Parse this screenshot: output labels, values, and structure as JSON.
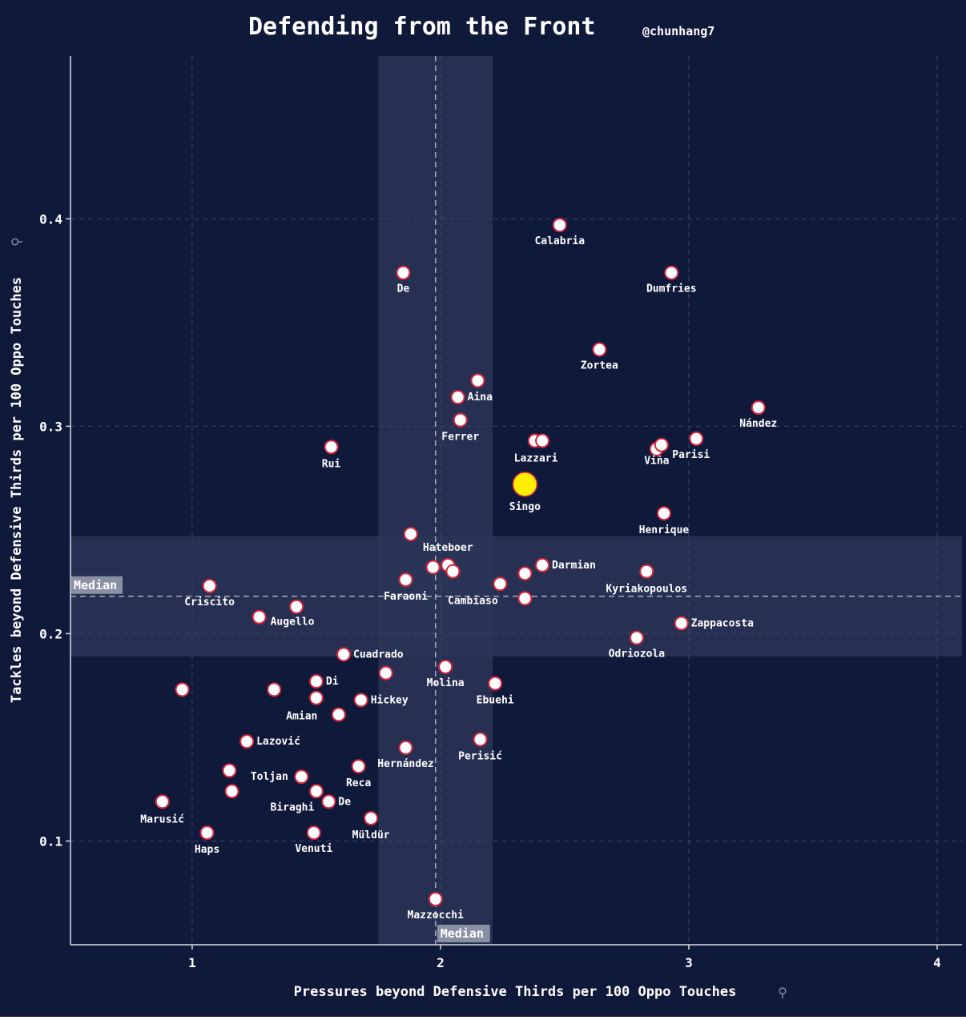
{
  "colors": {
    "background": "#0f1a3b",
    "axis": "#d8dbe6",
    "grid": "#3b4668",
    "median_band": "#2b3557",
    "median_line": "#a7adbf",
    "point_fill": "#ffffff",
    "point_stroke": "#d7263d",
    "highlight_fill": "#ffee00",
    "highlight_stroke": "#d7263d",
    "text": "#ffffff",
    "median_label_bg": "#8a90a3"
  },
  "chart_data": {
    "type": "scatter",
    "title": "Defending from the Front",
    "subtitle": "@chunhang7",
    "xlabel": "Pressures beyond Defensive Thirds per 100 Oppo Touches",
    "ylabel": "Tackles beyond Defensive Thirds per 100 Oppo Touches",
    "xlabel_icon": "pin-icon",
    "ylabel_icon": "pin-icon",
    "xlim": [
      0.51,
      4.1
    ],
    "ylim": [
      0.05,
      0.4785
    ],
    "xticks": [
      1,
      2,
      3,
      4
    ],
    "yticks": [
      0.1,
      0.2,
      0.3,
      0.4
    ],
    "xtick_labels": [
      "1",
      "2",
      "3",
      "4"
    ],
    "ytick_labels": [
      "0.1",
      "0.2",
      "0.3",
      "0.4"
    ],
    "grid": true,
    "x_median": 1.98,
    "y_median": 0.218,
    "x_band": [
      1.75,
      2.21
    ],
    "y_band": [
      0.189,
      0.247
    ],
    "median_label": "Median",
    "highlight": "Singo",
    "points": [
      {
        "x": 2.48,
        "y": 0.397,
        "label": "Calabria"
      },
      {
        "x": 1.85,
        "y": 0.374,
        "label": "De"
      },
      {
        "x": 2.93,
        "y": 0.374,
        "label": "Dumfries"
      },
      {
        "x": 2.64,
        "y": 0.337,
        "label": "Zortea"
      },
      {
        "x": 2.15,
        "y": 0.322,
        "label": ""
      },
      {
        "x": 2.07,
        "y": 0.314,
        "label": "Aina"
      },
      {
        "x": 3.28,
        "y": 0.309,
        "label": "Nández"
      },
      {
        "x": 2.08,
        "y": 0.303,
        "label": "Ferrer"
      },
      {
        "x": 2.38,
        "y": 0.293,
        "label": ""
      },
      {
        "x": 2.41,
        "y": 0.293,
        "label": "Lazzari"
      },
      {
        "x": 3.03,
        "y": 0.294,
        "label": "Parisi"
      },
      {
        "x": 2.87,
        "y": 0.289,
        "label": ""
      },
      {
        "x": 2.89,
        "y": 0.291,
        "label": "Viña"
      },
      {
        "x": 1.56,
        "y": 0.29,
        "label": "Rui"
      },
      {
        "x": 2.34,
        "y": 0.272,
        "label": "Singo"
      },
      {
        "x": 2.9,
        "y": 0.258,
        "label": "Henrique"
      },
      {
        "x": 1.88,
        "y": 0.248,
        "label": ""
      },
      {
        "x": 1.97,
        "y": 0.232,
        "label": ""
      },
      {
        "x": 2.03,
        "y": 0.233,
        "label": "Hateboer"
      },
      {
        "x": 2.05,
        "y": 0.23,
        "label": ""
      },
      {
        "x": 2.41,
        "y": 0.233,
        "label": "Darmian"
      },
      {
        "x": 2.34,
        "y": 0.229,
        "label": ""
      },
      {
        "x": 2.83,
        "y": 0.23,
        "label": "Kyriakopoulos"
      },
      {
        "x": 1.86,
        "y": 0.226,
        "label": "Faraoni"
      },
      {
        "x": 2.24,
        "y": 0.224,
        "label": "Cambiaso"
      },
      {
        "x": 2.34,
        "y": 0.217,
        "label": ""
      },
      {
        "x": 1.07,
        "y": 0.223,
        "label": "Criscito"
      },
      {
        "x": 1.42,
        "y": 0.213,
        "label": ""
      },
      {
        "x": 1.27,
        "y": 0.208,
        "label": "Augello"
      },
      {
        "x": 2.97,
        "y": 0.205,
        "label": "Zappacosta"
      },
      {
        "x": 2.79,
        "y": 0.198,
        "label": "Odriozola"
      },
      {
        "x": 1.61,
        "y": 0.19,
        "label": "Cuadrado"
      },
      {
        "x": 2.02,
        "y": 0.184,
        "label": "Molina"
      },
      {
        "x": 1.78,
        "y": 0.181,
        "label": ""
      },
      {
        "x": 1.5,
        "y": 0.177,
        "label": "Di"
      },
      {
        "x": 2.22,
        "y": 0.176,
        "label": "Ebuehi"
      },
      {
        "x": 0.96,
        "y": 0.173,
        "label": ""
      },
      {
        "x": 1.33,
        "y": 0.173,
        "label": ""
      },
      {
        "x": 1.5,
        "y": 0.169,
        "label": ""
      },
      {
        "x": 1.68,
        "y": 0.168,
        "label": "Hickey"
      },
      {
        "x": 1.59,
        "y": 0.161,
        "label": "Amian"
      },
      {
        "x": 1.22,
        "y": 0.148,
        "label": "Lazović"
      },
      {
        "x": 2.16,
        "y": 0.149,
        "label": "Perisić"
      },
      {
        "x": 1.86,
        "y": 0.145,
        "label": "Hernández"
      },
      {
        "x": 1.67,
        "y": 0.136,
        "label": "Reca"
      },
      {
        "x": 1.15,
        "y": 0.134,
        "label": ""
      },
      {
        "x": 1.44,
        "y": 0.131,
        "label": "Toljan"
      },
      {
        "x": 1.16,
        "y": 0.124,
        "label": ""
      },
      {
        "x": 1.5,
        "y": 0.124,
        "label": "Biraghi"
      },
      {
        "x": 1.55,
        "y": 0.119,
        "label": "De"
      },
      {
        "x": 0.88,
        "y": 0.119,
        "label": "Marusić"
      },
      {
        "x": 1.72,
        "y": 0.111,
        "label": "Müldür"
      },
      {
        "x": 1.06,
        "y": 0.104,
        "label": "Haps"
      },
      {
        "x": 1.49,
        "y": 0.104,
        "label": "Venuti"
      },
      {
        "x": 1.98,
        "y": 0.072,
        "label": "Mazzocchi"
      }
    ]
  }
}
